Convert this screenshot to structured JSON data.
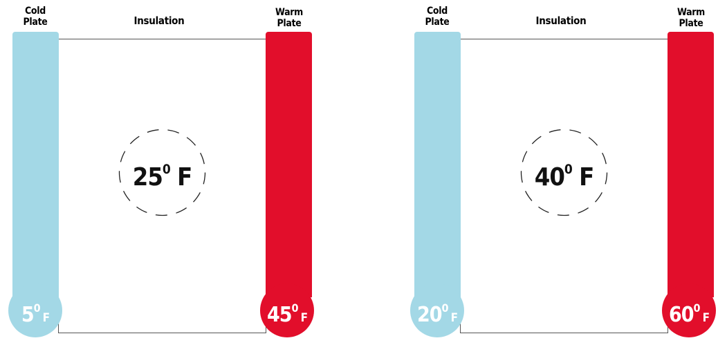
{
  "colors": {
    "cold": "#a3d8e6",
    "warm": "#e20e2b"
  },
  "panels": [
    {
      "cold_label": [
        "Cold",
        "Plate"
      ],
      "warm_label": [
        "Warm",
        "Plate"
      ],
      "insulation_label": "Insulation",
      "center": {
        "value": "25",
        "degree": "0",
        "unit": "F"
      },
      "cold_bulb": {
        "value": "5",
        "degree": "0",
        "unit": "F"
      },
      "warm_bulb": {
        "value": "45",
        "degree": "0",
        "unit": "F"
      }
    },
    {
      "cold_label": [
        "Cold",
        "Plate"
      ],
      "warm_label": [
        "Warm",
        "Plate"
      ],
      "insulation_label": "Insulation",
      "center": {
        "value": "40",
        "degree": "0",
        "unit": "F"
      },
      "cold_bulb": {
        "value": "20",
        "degree": "0",
        "unit": "F"
      },
      "warm_bulb": {
        "value": "60",
        "degree": "0",
        "unit": "F"
      }
    }
  ]
}
